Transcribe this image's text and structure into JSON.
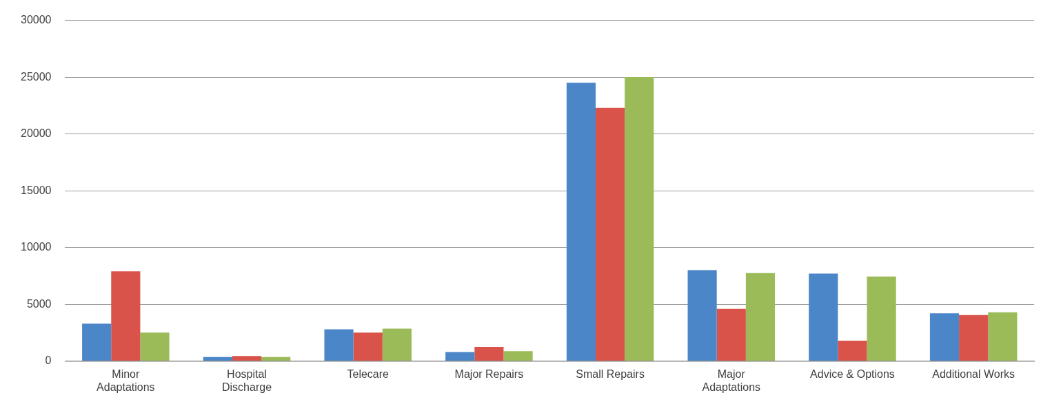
{
  "chart_data": {
    "type": "bar",
    "categories": [
      "Minor Adaptations",
      "Hospital Discharge",
      "Telecare",
      "Major Repairs",
      "Small Repairs",
      "Major Adaptations",
      "Advice & Options",
      "Additional Works"
    ],
    "series": [
      {
        "color": "#4a86c8",
        "values": [
          3300,
          350,
          2800,
          800,
          24500,
          8000,
          7700,
          4200
        ]
      },
      {
        "color": "#d9534a",
        "values": [
          7900,
          450,
          2500,
          1250,
          22300,
          4600,
          1800,
          4050
        ]
      },
      {
        "color": "#9bbb59",
        "values": [
          2500,
          350,
          2850,
          870,
          25000,
          7750,
          7450,
          4300
        ]
      }
    ],
    "ylim": [
      0,
      30000
    ],
    "yticks": [
      0,
      5000,
      10000,
      15000,
      20000,
      25000,
      30000
    ],
    "grid": "y",
    "legend": false
  }
}
